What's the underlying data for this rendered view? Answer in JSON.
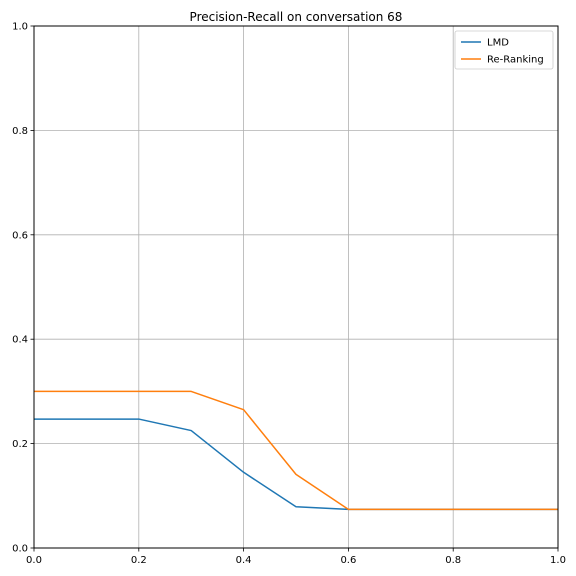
{
  "chart_data": {
    "type": "line",
    "title": "Precision-Recall on conversation 68",
    "xlabel": "",
    "ylabel": "",
    "xlim": [
      0,
      1
    ],
    "ylim": [
      0,
      1
    ],
    "x_ticks": [
      "0.0",
      "0.2",
      "0.4",
      "0.6",
      "0.8",
      "1.0"
    ],
    "y_ticks": [
      "0.0",
      "0.2",
      "0.4",
      "0.6",
      "0.8",
      "1.0"
    ],
    "grid": true,
    "legend_position": "top-right",
    "series": [
      {
        "name": "LMD",
        "color": "#1f77b4",
        "x": [
          0.0,
          0.1,
          0.2,
          0.3,
          0.4,
          0.5,
          0.6,
          0.7,
          0.8,
          0.9,
          1.0
        ],
        "y": [
          0.247,
          0.247,
          0.247,
          0.225,
          0.145,
          0.079,
          0.074,
          0.074,
          0.074,
          0.074,
          0.074
        ]
      },
      {
        "name": "Re-Ranking",
        "color": "#ff7f0e",
        "x": [
          0.0,
          0.1,
          0.2,
          0.3,
          0.4,
          0.5,
          0.6,
          0.7,
          0.8,
          0.9,
          1.0
        ],
        "y": [
          0.3,
          0.3,
          0.3,
          0.3,
          0.265,
          0.141,
          0.074,
          0.074,
          0.074,
          0.074,
          0.074
        ]
      }
    ]
  }
}
